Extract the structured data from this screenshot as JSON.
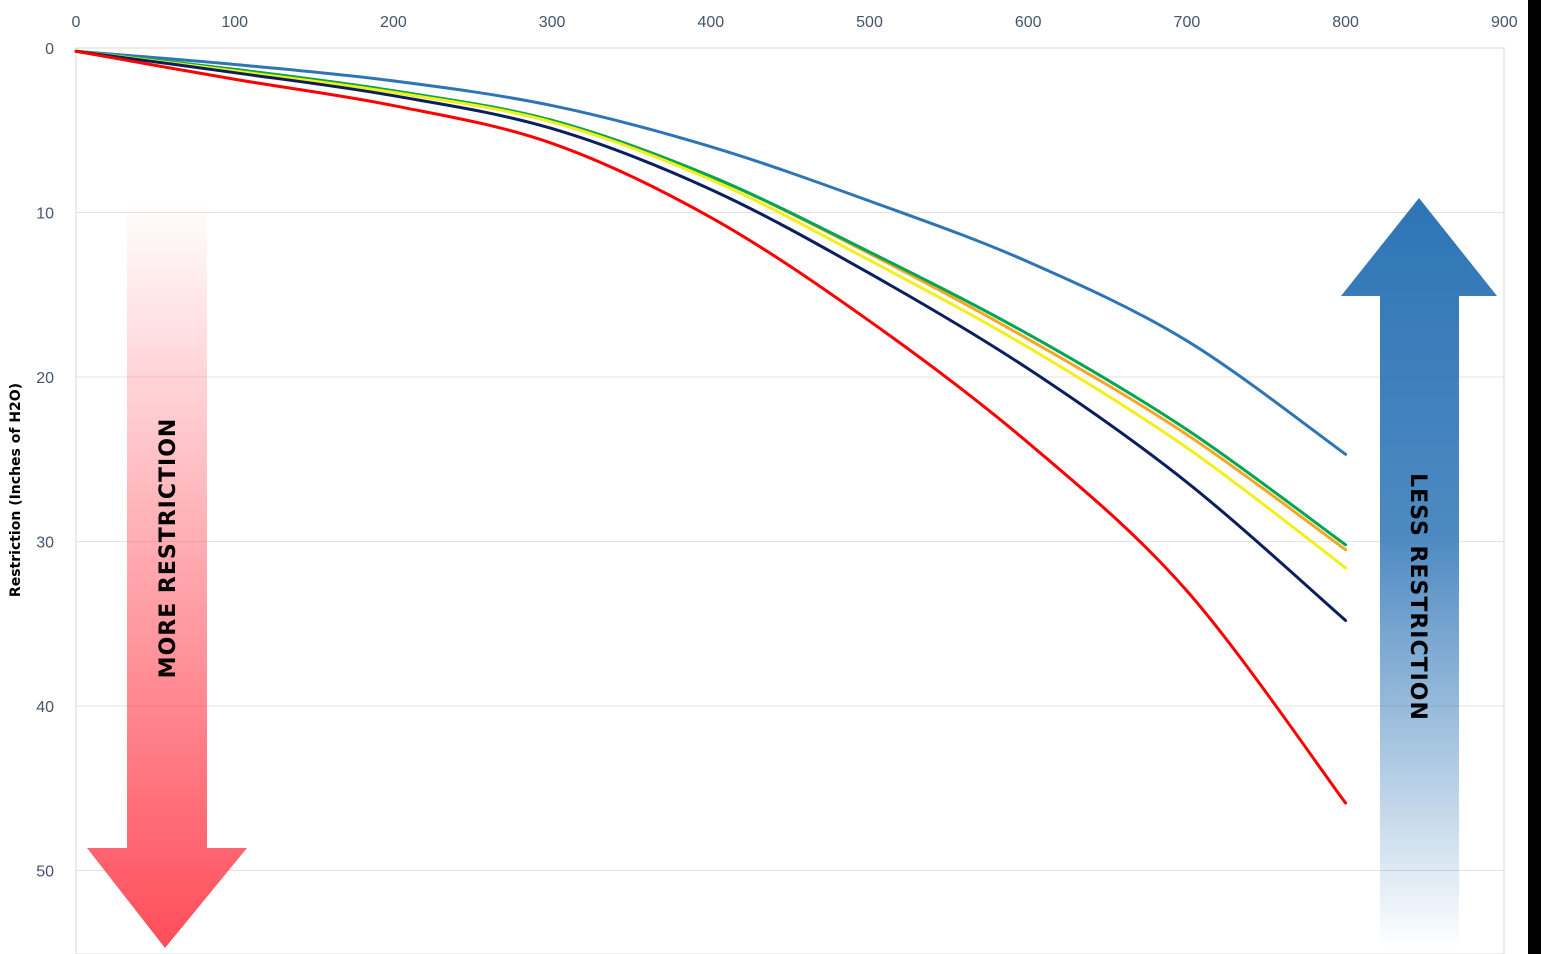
{
  "chart_data": {
    "type": "line",
    "title": "",
    "xlabel": "",
    "ylabel": "Restriction (Inches of H2O)",
    "xlim": [
      0,
      900
    ],
    "ylim": [
      0,
      55
    ],
    "y_inverted": true,
    "x_axis_position": "top",
    "grid": "horizontal",
    "x_ticks": [
      "0",
      "100",
      "200",
      "300",
      "400",
      "500",
      "600",
      "700",
      "800",
      "900"
    ],
    "y_ticks": [
      "0",
      "10",
      "20",
      "30",
      "40",
      "50"
    ],
    "series": [
      {
        "color": "#2e75b6",
        "x": [
          0,
          100,
          200,
          300,
          400,
          500,
          600,
          700,
          800
        ],
        "y": [
          0.2,
          1.0,
          2.0,
          3.5,
          6.0,
          9.3,
          13.0,
          17.8,
          24.7
        ]
      },
      {
        "color": "#f5a623",
        "x": [
          0,
          100,
          200,
          300,
          400,
          500,
          600,
          700,
          800
        ],
        "y": [
          0.2,
          1.3,
          2.6,
          4.4,
          7.8,
          12.5,
          17.7,
          23.5,
          30.5
        ]
      },
      {
        "color": "#00a651",
        "x": [
          0,
          100,
          200,
          300,
          400,
          500,
          600,
          700,
          800
        ],
        "y": [
          0.2,
          1.3,
          2.6,
          4.4,
          7.8,
          12.4,
          17.4,
          23.2,
          30.2
        ]
      },
      {
        "color": "#f2ef1a",
        "x": [
          0,
          100,
          200,
          300,
          400,
          500,
          600,
          700,
          800
        ],
        "y": [
          0.2,
          1.4,
          2.7,
          4.5,
          8.0,
          12.9,
          18.2,
          24.3,
          31.6
        ]
      },
      {
        "color": "#0a1f5c",
        "x": [
          0,
          100,
          200,
          300,
          400,
          500,
          600,
          700,
          800
        ],
        "y": [
          0.2,
          1.5,
          2.9,
          4.9,
          8.6,
          13.7,
          19.5,
          26.4,
          34.8
        ]
      },
      {
        "color": "#ff0000",
        "x": [
          0,
          100,
          200,
          300,
          400,
          500,
          600,
          700,
          800
        ],
        "y": [
          0.2,
          1.9,
          3.5,
          5.8,
          10.3,
          16.6,
          24.0,
          33.0,
          45.9
        ]
      }
    ],
    "annotations": [
      {
        "text": "MORE RESTRICTION",
        "arrow": "down",
        "color": "#ff4d5a"
      },
      {
        "text": "LESS RESTRICTION",
        "arrow": "up",
        "color": "#2e75b6"
      }
    ]
  }
}
